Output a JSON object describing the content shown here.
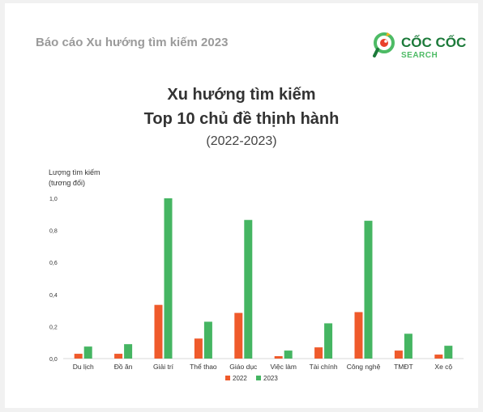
{
  "header": {
    "report_title": "Báo cáo Xu hướng tìm kiếm 2023",
    "logo_text": "CỐC CỐC",
    "logo_sub": "SEARCH"
  },
  "colors": {
    "background": "#f1f1f1",
    "card": "#ffffff",
    "series_2022": "#ef5a2b",
    "series_2023": "#45b562",
    "logo_green": "#1c7a3a",
    "logo_red": "#e9402b"
  },
  "chart_data": {
    "type": "bar",
    "title_line1": "Xu hướng tìm kiếm",
    "title_line2": "Top 10 chủ đề thịnh hành",
    "subtitle": "(2022-2023)",
    "ylabel_line1": "Lượng tìm kiếm",
    "ylabel_line2": "(tương đối)",
    "categories": [
      "Du lịch",
      "Đồ ăn",
      "Giải trí",
      "Thể thao",
      "Giáo dục",
      "Việc làm",
      "Tài chính",
      "Công nghệ",
      "TMĐT",
      "Xe cộ"
    ],
    "series": [
      {
        "name": "2022",
        "color": "#ef5a2b",
        "values": [
          0.03,
          0.03,
          0.335,
          0.125,
          0.285,
          0.015,
          0.07,
          0.29,
          0.05,
          0.025
        ]
      },
      {
        "name": "2023",
        "color": "#45b562",
        "values": [
          0.075,
          0.09,
          1.0,
          0.23,
          0.865,
          0.05,
          0.22,
          0.86,
          0.155,
          0.08
        ]
      }
    ],
    "ylim": [
      0,
      1.0
    ],
    "yticks": [
      "0,0",
      "0,2",
      "0,4",
      "0,6",
      "0,8",
      "1,0"
    ],
    "grid": false,
    "legend_position": "bottom"
  }
}
